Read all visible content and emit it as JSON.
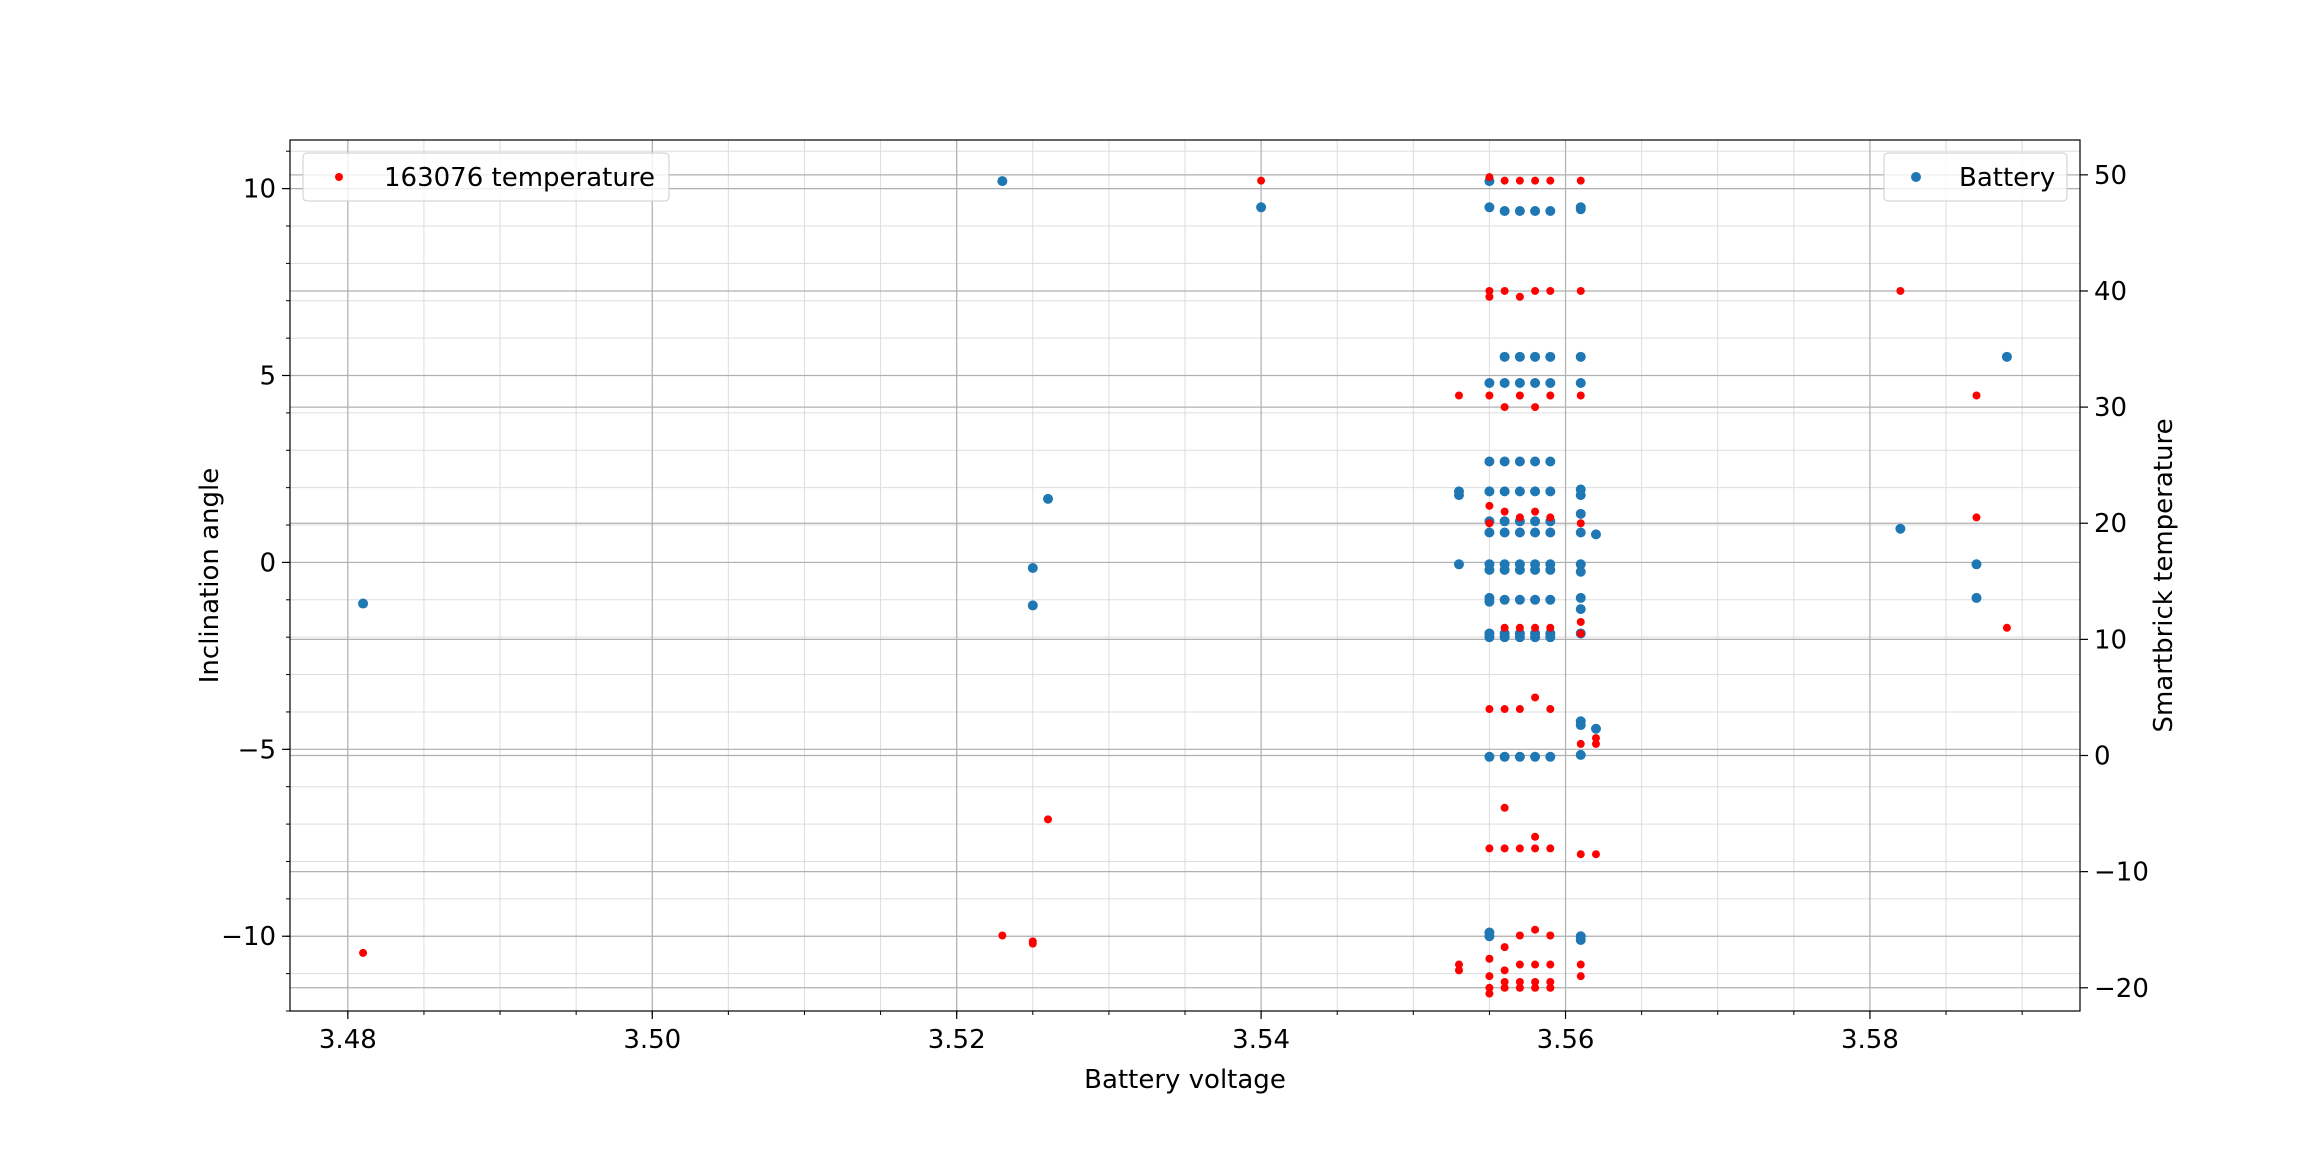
{
  "chart_data": {
    "type": "scatter",
    "xlabel": "Battery voltage",
    "ylabel_left": "Inclination angle",
    "ylabel_right": "Smartbrick temperature",
    "xlim": [
      3.4762,
      3.5938
    ],
    "ylim_left": [
      -12.0,
      11.3
    ],
    "ylim_right": [
      -22.0,
      53.0
    ],
    "x_ticks": [
      3.48,
      3.5,
      3.52,
      3.54,
      3.56,
      3.58
    ],
    "x_tick_labels": [
      "3.48",
      "3.50",
      "3.52",
      "3.54",
      "3.56",
      "3.58"
    ],
    "y_left_ticks": [
      -10,
      -5,
      0,
      5,
      10
    ],
    "y_left_tick_labels": [
      "−10",
      "−5",
      "0",
      "5",
      "10"
    ],
    "y_right_ticks": [
      -20,
      -10,
      0,
      10,
      20,
      30,
      40,
      50
    ],
    "y_right_tick_labels": [
      "−20",
      "−10",
      "0",
      "10",
      "20",
      "30",
      "40",
      "50"
    ],
    "grid": true,
    "minor_grid": true,
    "legend_left": {
      "placement": "upper-left",
      "label": "163076 temperature"
    },
    "legend_right": {
      "placement": "upper-right",
      "label": "Battery"
    },
    "series": [
      {
        "name": "Battery",
        "axis": "left",
        "color": "#1f77b4",
        "x": [
          3.481,
          3.523,
          3.525,
          3.525,
          3.526,
          3.54,
          3.553,
          3.553,
          3.553,
          3.555,
          3.555,
          3.555,
          3.555,
          3.555,
          3.555,
          3.555,
          3.555,
          3.555,
          3.555,
          3.555,
          3.555,
          3.555,
          3.555,
          3.555,
          3.555,
          3.556,
          3.556,
          3.556,
          3.556,
          3.556,
          3.556,
          3.556,
          3.556,
          3.556,
          3.556,
          3.556,
          3.556,
          3.556,
          3.557,
          3.557,
          3.557,
          3.557,
          3.557,
          3.557,
          3.557,
          3.557,
          3.557,
          3.557,
          3.557,
          3.557,
          3.557,
          3.558,
          3.558,
          3.558,
          3.558,
          3.558,
          3.558,
          3.558,
          3.558,
          3.558,
          3.558,
          3.558,
          3.558,
          3.558,
          3.559,
          3.559,
          3.559,
          3.559,
          3.559,
          3.559,
          3.559,
          3.559,
          3.559,
          3.559,
          3.559,
          3.559,
          3.559,
          3.561,
          3.561,
          3.561,
          3.561,
          3.561,
          3.561,
          3.561,
          3.561,
          3.561,
          3.561,
          3.561,
          3.561,
          3.561,
          3.561,
          3.561,
          3.561,
          3.561,
          3.561,
          3.562,
          3.562,
          3.582,
          3.587,
          3.587,
          3.589
        ],
        "y": [
          -1.1,
          10.2,
          -0.15,
          -1.15,
          1.7,
          9.5,
          1.9,
          1.8,
          -0.05,
          10.2,
          9.5,
          4.8,
          2.7,
          1.9,
          1.1,
          0.8,
          -0.05,
          -0.2,
          -0.95,
          -1.05,
          -1.9,
          -2.0,
          -5.2,
          -9.9,
          -10.0,
          9.4,
          5.5,
          4.8,
          2.7,
          1.9,
          1.1,
          0.8,
          -0.05,
          -0.2,
          -1.0,
          -1.9,
          -2.0,
          -5.2,
          9.4,
          5.5,
          4.8,
          2.7,
          1.9,
          1.1,
          0.8,
          -0.05,
          -0.2,
          -1.0,
          -1.9,
          -2.0,
          -5.2,
          9.4,
          5.5,
          4.8,
          2.7,
          1.9,
          1.1,
          0.8,
          -0.05,
          -0.2,
          -1.0,
          -1.9,
          -2.0,
          -5.2,
          9.4,
          5.5,
          4.8,
          2.7,
          1.9,
          1.1,
          0.8,
          -0.05,
          -0.2,
          -1.0,
          -1.9,
          -2.0,
          -5.2,
          9.45,
          9.5,
          5.5,
          4.8,
          1.95,
          1.8,
          1.3,
          0.8,
          -0.05,
          -0.25,
          -0.95,
          -1.25,
          -1.9,
          -4.25,
          -4.35,
          -5.15,
          -10.0,
          -10.1,
          0.75,
          -4.45,
          0.9,
          -0.05,
          -0.95,
          5.5
        ]
      },
      {
        "name": "163076 temperature",
        "axis": "right",
        "color": "#ff0000",
        "x": [
          3.481,
          3.523,
          3.525,
          3.525,
          3.526,
          3.54,
          3.553,
          3.553,
          3.553,
          3.555,
          3.555,
          3.555,
          3.555,
          3.555,
          3.555,
          3.555,
          3.555,
          3.555,
          3.555,
          3.555,
          3.555,
          3.556,
          3.556,
          3.556,
          3.556,
          3.556,
          3.556,
          3.556,
          3.556,
          3.556,
          3.556,
          3.556,
          3.556,
          3.557,
          3.557,
          3.557,
          3.557,
          3.557,
          3.557,
          3.557,
          3.557,
          3.557,
          3.557,
          3.557,
          3.558,
          3.558,
          3.558,
          3.558,
          3.558,
          3.558,
          3.558,
          3.558,
          3.558,
          3.558,
          3.558,
          3.558,
          3.559,
          3.559,
          3.559,
          3.559,
          3.559,
          3.559,
          3.559,
          3.559,
          3.559,
          3.559,
          3.559,
          3.561,
          3.561,
          3.561,
          3.561,
          3.561,
          3.561,
          3.561,
          3.561,
          3.561,
          3.561,
          3.562,
          3.562,
          3.562,
          3.582,
          3.587,
          3.587,
          3.589
        ],
        "y": [
          -17,
          -15.5,
          -16,
          -16.2,
          -5.5,
          49.5,
          31,
          -18,
          -18.5,
          49.8,
          40,
          39.5,
          31,
          21.5,
          20,
          4,
          -8,
          -17.5,
          -19,
          -20,
          -20.5,
          49.5,
          40,
          30,
          21,
          11,
          4,
          -8,
          -16.5,
          -18.5,
          -19.5,
          -20,
          -4.5,
          49.5,
          39.5,
          31,
          20.5,
          11,
          4,
          -8,
          -15.5,
          -18,
          -19.5,
          -20,
          49.5,
          40,
          30,
          21,
          11,
          5,
          -7,
          -8,
          -15,
          -18,
          -19.5,
          -20,
          49.5,
          40,
          31,
          20.5,
          11,
          4,
          -8,
          -15.5,
          -18,
          -19.5,
          -20,
          49.5,
          40,
          31,
          20,
          11.5,
          10.5,
          1,
          -8.5,
          -18,
          -19,
          1.5,
          1,
          -8.5,
          40,
          31,
          20.5,
          11
        ]
      }
    ]
  }
}
